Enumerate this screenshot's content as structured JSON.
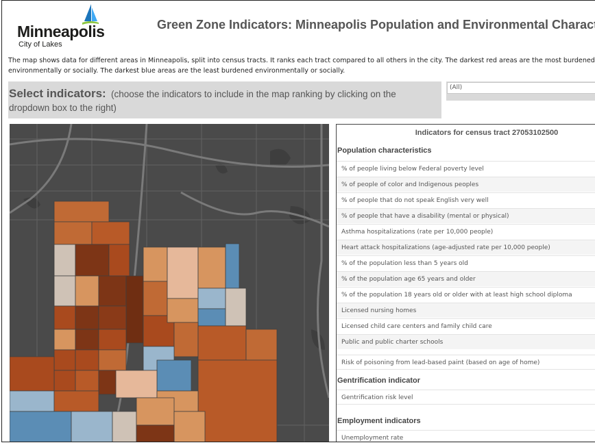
{
  "header": {
    "logo_word": "Minneapolis",
    "logo_sub": "City of Lakes",
    "title": "Green Zone Indicators: Minneapolis Population and Environmental Characteristics",
    "description": "The map shows data for different areas in Minneapolis, split into census tracts. It ranks each tract compared to all others in the city. The darkest red areas are the most burdened environmentally or socially. The darkest blue areas are the least burdened environmentally or socially."
  },
  "selector": {
    "heading": "Select indicators:",
    "hint_line1": "(choose the indicators to include in the map ranking by clicking on the",
    "hint_line2": "dropdown box to the right)",
    "dropdown_value": "(All)"
  },
  "panel": {
    "title": "Indicators for census tract 27053102500",
    "sections": {
      "population": "Population characteristics",
      "gentrification": "Gentrification indicator",
      "employment": "Employment indicators"
    },
    "population_rows": [
      "% of people living below Federal poverty level",
      "% of people of color and Indigenous peoples",
      "% of people that do not speak English very well",
      "% of people that have a disability (mental or physical)",
      "Asthma hospitalizations (rate per 10,000 people)",
      "Heart attack hospitalizations (age-adjusted rate per 10,000 people)",
      "% of the population less than 5 years old",
      "% of the population age 65 years and older",
      "% of the population 18 years old or older with at least high school diploma",
      "Licensed nursing homes",
      "Licensed child care centers and family child care",
      "Public and public charter schools"
    ],
    "lead_row": "Risk of poisoning from lead-based paint (based on age of home)",
    "gentrification_row": "Gentrification risk level",
    "employment_row": "Unemployment rate"
  },
  "map": {
    "colors": {
      "base": "#4a4a4a",
      "road": "#6a6a6a",
      "dark_red": "#7d3516",
      "red": "#a94a1e",
      "orange": "#c06a35",
      "light_orange": "#d7955f",
      "peach": "#e6b89a",
      "grey_tan": "#cfc2b6",
      "light_blue": "#9ab6cc",
      "blue": "#5b8db5"
    }
  }
}
